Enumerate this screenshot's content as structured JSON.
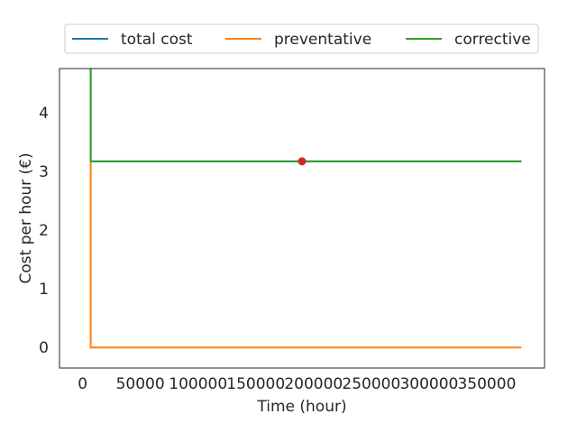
{
  "chart_data": {
    "type": "line",
    "title": "",
    "xlabel": "Time (hour)",
    "ylabel": "Cost per hour (€)",
    "xlim": [
      -20000,
      400000
    ],
    "ylim": [
      -0.35,
      4.75
    ],
    "xticks": [
      0,
      50000,
      100000,
      150000,
      200000,
      250000,
      300000,
      350000
    ],
    "xtick_labels": [
      "0",
      "50000",
      "100000",
      "150000",
      "200000",
      "250000",
      "300000",
      "350000"
    ],
    "yticks": [
      0,
      1,
      2,
      3,
      4
    ],
    "ytick_labels": [
      "0",
      "1",
      "2",
      "3",
      "4"
    ],
    "grid": false,
    "legend_position": "top-center",
    "series": [
      {
        "name": "total cost",
        "color": "#1f77b4",
        "points": [
          [
            7000,
            4.75
          ],
          [
            7000,
            3.17
          ],
          [
            380000,
            3.17
          ]
        ]
      },
      {
        "name": "preventative",
        "color": "#ff7f0e",
        "points": [
          [
            7000,
            3.17
          ],
          [
            7000,
            0.0
          ],
          [
            380000,
            0.0
          ]
        ]
      },
      {
        "name": "corrective",
        "color": "#2ca02c",
        "points": [
          [
            7000,
            4.75
          ],
          [
            7000,
            3.17
          ],
          [
            380000,
            3.17
          ]
        ]
      }
    ],
    "markers": [
      {
        "x": 190000,
        "y": 3.17,
        "color": "#d62728"
      }
    ]
  }
}
